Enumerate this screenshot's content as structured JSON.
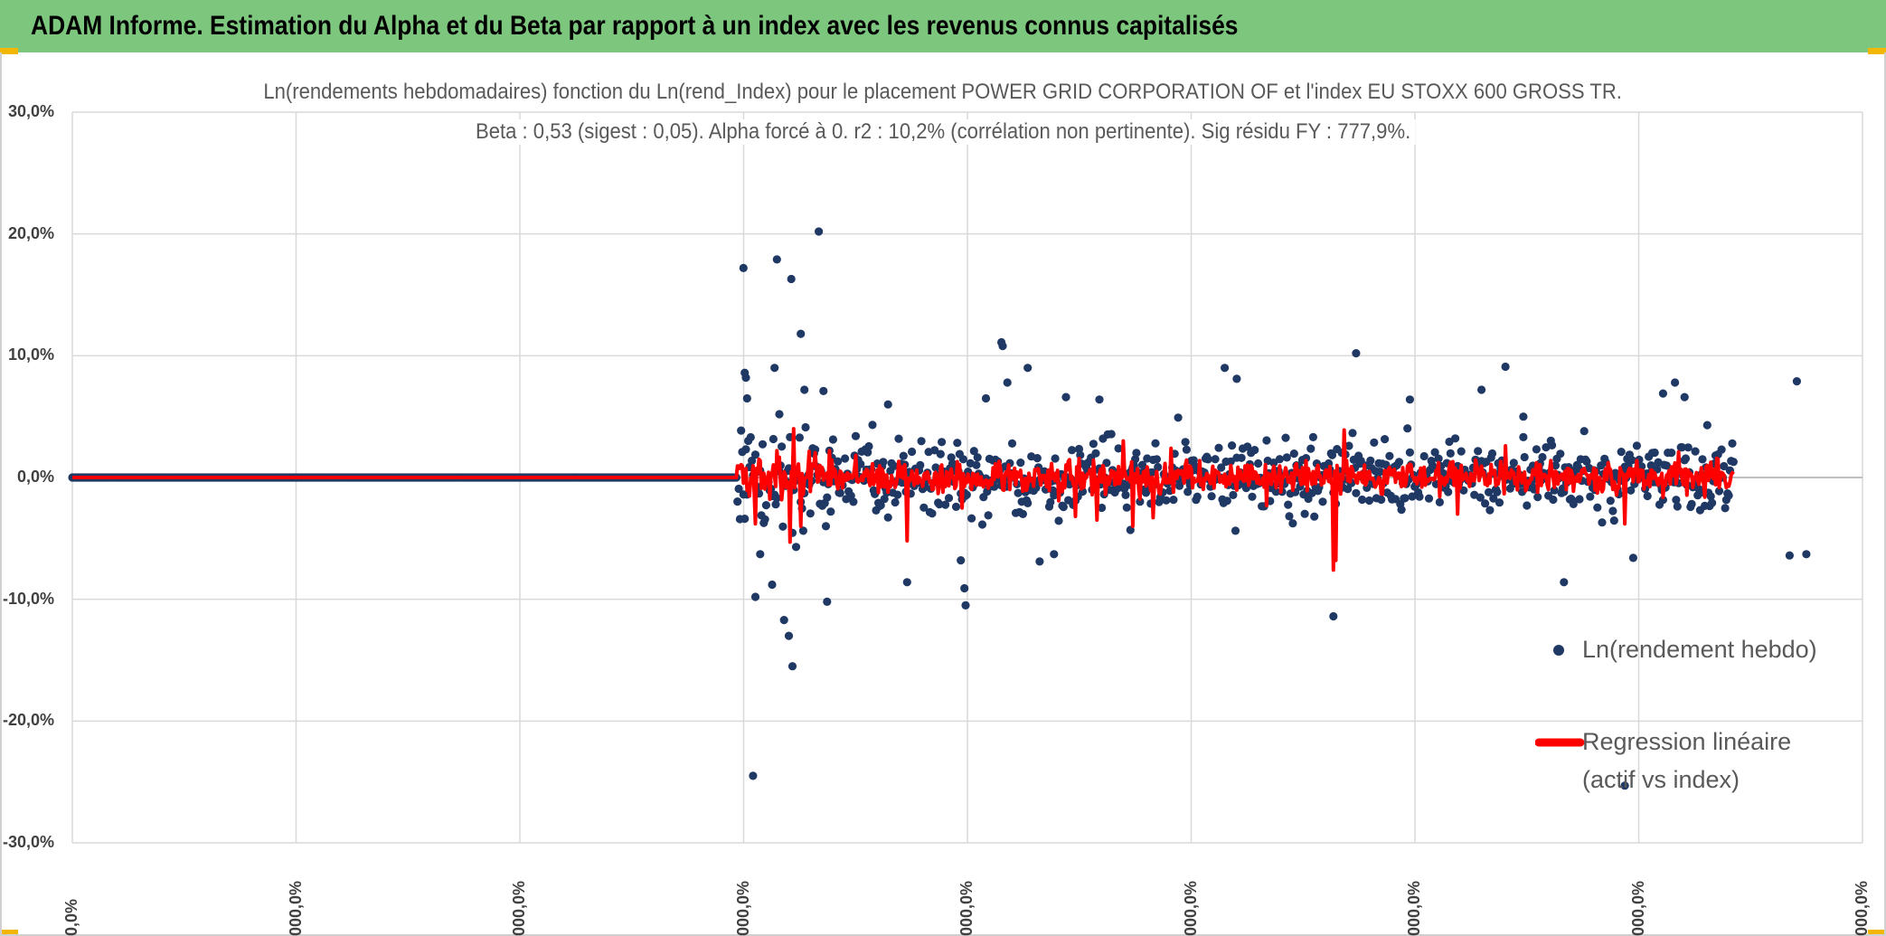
{
  "header": {
    "title": "ADAM Informe. Estimation du Alpha et du Beta par rapport à un index avec les revenus connus capitalisés"
  },
  "colors": {
    "banner": "#7dc67e",
    "scatter": "#1f3864",
    "regression": "#ff0000",
    "grid": "#d9d9d9"
  },
  "chart_data": {
    "type": "scatter",
    "title": "Ln(rendements hebdomadaires) fonction du Ln(rend_Index) pour le placement POWER GRID CORPORATION OF et l'index EU STOXX 600 GROSS TR.",
    "subtitle": "Beta : 0,53 (sigest : 0,05). Alpha forcé à 0. r2 : 10,2% (corrélation non pertinente). Sig résidu FY : 777,9%.",
    "ylim": [
      -30,
      30
    ],
    "y_ticks": [
      "30,0%",
      "20,0%",
      "10,0%",
      "0,0%",
      "-10,0%",
      "-20,0%",
      "-30,0%"
    ],
    "y_tick_values": [
      30,
      20,
      10,
      0,
      -10,
      -20,
      -30
    ],
    "x_ticks": [
      "0,0%",
      "000,0%",
      "000,0%",
      "000,0%",
      "000,0%",
      "000,0%",
      "000,0%",
      "000,0%",
      "000,0%"
    ],
    "x_count": 1500,
    "data_start": 557,
    "seed": 20240611,
    "beta": 0.53,
    "series": [
      {
        "name": "Ln(rendement hebdo)",
        "kind": "points",
        "outliers": [
          [
            562,
            17.2
          ],
          [
            563,
            8.6
          ],
          [
            564,
            8.2
          ],
          [
            565,
            6.5
          ],
          [
            570,
            -24.5
          ],
          [
            572,
            -9.8
          ],
          [
            576,
            -6.3
          ],
          [
            586,
            -8.8
          ],
          [
            588,
            9.0
          ],
          [
            590,
            17.9
          ],
          [
            592,
            5.2
          ],
          [
            596,
            -11.7
          ],
          [
            600,
            -13.0
          ],
          [
            602,
            16.3
          ],
          [
            603,
            -15.5
          ],
          [
            606,
            -5.7
          ],
          [
            610,
            11.8
          ],
          [
            613,
            7.2
          ],
          [
            625,
            20.2
          ],
          [
            629,
            7.1
          ],
          [
            632,
            -10.2
          ],
          [
            683,
            6.0
          ],
          [
            699,
            -8.6
          ],
          [
            744,
            -6.8
          ],
          [
            747,
            -9.1
          ],
          [
            748,
            -10.5
          ],
          [
            765,
            6.5
          ],
          [
            778,
            11.1
          ],
          [
            779,
            10.8
          ],
          [
            783,
            7.8
          ],
          [
            800,
            9.0
          ],
          [
            810,
            -6.9
          ],
          [
            822,
            -6.3
          ],
          [
            832,
            6.6
          ],
          [
            860,
            6.4
          ],
          [
            965,
            9.0
          ],
          [
            975,
            8.1
          ],
          [
            1056,
            -11.4
          ],
          [
            1075,
            10.2
          ],
          [
            1120,
            6.4
          ],
          [
            1180,
            7.2
          ],
          [
            1200,
            9.1
          ],
          [
            1215,
            5.0
          ],
          [
            1249,
            -8.6
          ],
          [
            1300,
            -25.3
          ],
          [
            1307,
            -6.6
          ],
          [
            1332,
            6.9
          ],
          [
            1342,
            7.8
          ],
          [
            1350,
            6.6
          ],
          [
            1438,
            -6.4
          ],
          [
            1444,
            7.9
          ],
          [
            1452,
            -6.3
          ]
        ]
      },
      {
        "name": "Regression linéaire (actif vs index)",
        "kind": "line",
        "spikes": [
          [
            572,
            -3.8
          ],
          [
            590,
            2.2
          ],
          [
            601,
            -5.3
          ],
          [
            604,
            4.0
          ],
          [
            610,
            -4.0
          ],
          [
            699,
            -5.2
          ],
          [
            745,
            -2.5
          ],
          [
            840,
            -3.2
          ],
          [
            858,
            -3.5
          ],
          [
            880,
            3.0
          ],
          [
            888,
            -4.0
          ],
          [
            905,
            -3.3
          ],
          [
            920,
            2.4
          ],
          [
            1000,
            -2.3
          ],
          [
            1056,
            -7.6
          ],
          [
            1058,
            -6.8
          ],
          [
            1065,
            3.9
          ],
          [
            1160,
            -3.0
          ],
          [
            1200,
            2.6
          ],
          [
            1300,
            -3.8
          ],
          [
            1345,
            2.1
          ],
          [
            1438,
            -4.6
          ]
        ]
      }
    ],
    "legend": [
      {
        "label": "Ln(rendement hebdo)"
      },
      {
        "label": "Regression linéaire",
        "label2": "(actif vs index)"
      }
    ]
  }
}
